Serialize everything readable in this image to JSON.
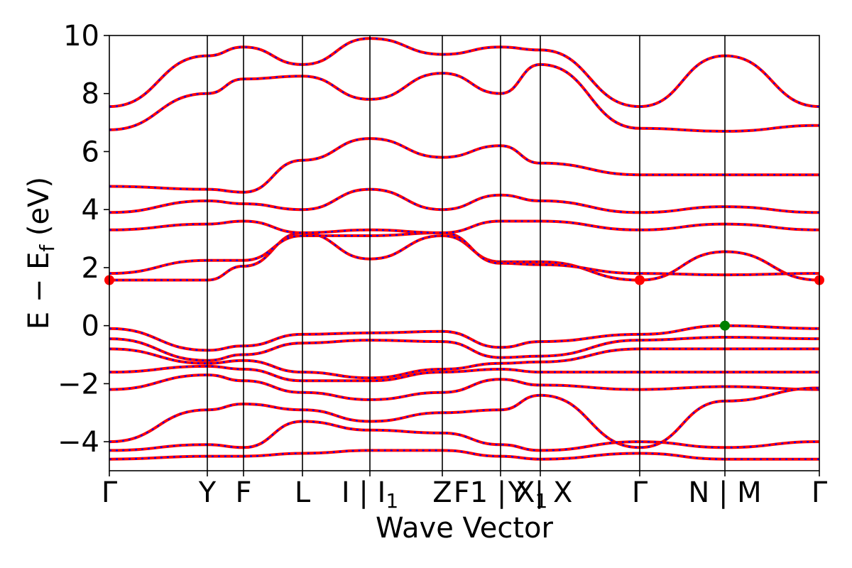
{
  "chart_data": {
    "type": "line",
    "title": "",
    "xlabel": "Wave Vector",
    "ylabel": "E − E_f (eV)",
    "ylabel_parts": {
      "prefix": "E − E",
      "subscript": "f",
      "suffix": " (eV)"
    },
    "ylim": [
      -5,
      10
    ],
    "grid": false,
    "legend": "none",
    "y_ticks": [
      -4,
      -2,
      0,
      2,
      4,
      6,
      8,
      10
    ],
    "y_tick_labels": [
      "−4",
      "−2",
      "0",
      "2",
      "4",
      "6",
      "8",
      "10"
    ],
    "x_range": [
      0,
      10
    ],
    "kpoints": [
      {
        "x": 0.0,
        "label": "Γ"
      },
      {
        "x": 1.38,
        "label": "Y"
      },
      {
        "x": 1.89,
        "label": "F"
      },
      {
        "x": 2.72,
        "label": "L"
      },
      {
        "x": 3.67,
        "label": "I | I1",
        "label_main": "I | I",
        "label_sub": "1"
      },
      {
        "x": 4.69,
        "label": "Z"
      },
      {
        "x": 5.51,
        "label": "F1 | X1",
        "label_main": "F1 | X",
        "label_sub": "1"
      },
      {
        "x": 6.07,
        "label": "Y | X"
      },
      {
        "x": 7.47,
        "label": "Γ"
      },
      {
        "x": 8.67,
        "label": "N | M"
      },
      {
        "x": 10.0,
        "label": "Γ"
      }
    ],
    "band_colors": {
      "primary": "#ff0000",
      "overlay": "#0000ff",
      "vertical_line": "#000000"
    },
    "markers": [
      {
        "name": "cbm",
        "x": 0.0,
        "y": 1.57,
        "color": "#ff0000"
      },
      {
        "name": "cbm",
        "x": 7.47,
        "y": 1.57,
        "color": "#ff0000"
      },
      {
        "name": "cbm",
        "x": 10.0,
        "y": 1.57,
        "color": "#ff0000"
      },
      {
        "name": "vbm",
        "x": 8.67,
        "y": 0.0,
        "color": "#008000"
      }
    ],
    "series": [
      {
        "x": [
          0,
          1.38,
          1.89,
          2.72,
          3.67,
          4.69,
          5.51,
          6.07,
          7.47,
          8.67,
          10.0
        ],
        "y": [
          1.57,
          1.57,
          2.05,
          3.2,
          2.3,
          3.1,
          2.2,
          2.2,
          1.57,
          2.55,
          1.57
        ]
      },
      {
        "x": [
          0,
          1.38,
          1.89,
          2.72,
          3.67,
          4.69,
          5.51,
          6.07,
          7.47,
          8.67,
          10.0
        ],
        "y": [
          1.8,
          2.25,
          2.25,
          3.1,
          3.1,
          3.2,
          2.15,
          2.1,
          1.8,
          1.75,
          1.8
        ]
      },
      {
        "x": [
          0,
          1.38,
          1.89,
          2.72,
          3.67,
          4.69,
          5.51,
          6.07,
          7.47,
          8.67,
          10.0
        ],
        "y": [
          3.3,
          3.5,
          3.6,
          3.2,
          3.3,
          3.2,
          3.6,
          3.6,
          3.3,
          3.5,
          3.3
        ]
      },
      {
        "x": [
          0,
          1.38,
          1.89,
          2.72,
          3.67,
          4.69,
          5.51,
          6.07,
          7.47,
          8.67,
          10.0
        ],
        "y": [
          3.9,
          4.3,
          4.2,
          4.0,
          4.7,
          4.0,
          4.5,
          4.3,
          3.9,
          4.1,
          3.9
        ]
      },
      {
        "x": [
          0,
          1.38,
          1.89,
          2.72,
          3.67,
          4.69,
          5.51,
          6.07,
          7.47,
          8.67,
          10.0
        ],
        "y": [
          4.8,
          4.7,
          4.6,
          5.7,
          6.45,
          5.8,
          6.2,
          5.6,
          5.2,
          5.2,
          5.2
        ]
      },
      {
        "x": [
          0,
          1.38,
          1.89,
          2.72,
          3.67,
          4.69,
          5.51,
          6.07,
          7.47,
          8.67,
          10.0
        ],
        "y": [
          6.75,
          8.0,
          8.5,
          8.6,
          7.8,
          8.7,
          8.0,
          9.0,
          6.8,
          6.7,
          6.9
        ]
      },
      {
        "x": [
          0,
          1.38,
          1.89,
          2.72,
          3.67,
          4.69,
          5.51,
          6.07,
          7.47,
          8.67,
          10.0
        ],
        "y": [
          7.55,
          9.3,
          9.6,
          9.0,
          9.9,
          9.35,
          9.6,
          9.5,
          7.55,
          9.3,
          7.55
        ]
      },
      {
        "x": [
          0,
          1.38,
          1.89,
          2.72,
          3.67,
          4.69,
          5.51,
          6.07,
          7.47,
          8.67,
          10.0
        ],
        "y": [
          -0.1,
          -0.85,
          -0.7,
          -0.3,
          -0.25,
          -0.2,
          -0.75,
          -0.55,
          -0.3,
          0.0,
          -0.1
        ]
      },
      {
        "x": [
          0,
          1.38,
          1.89,
          2.72,
          3.67,
          4.69,
          5.51,
          6.07,
          7.47,
          8.67,
          10.0
        ],
        "y": [
          -0.45,
          -1.2,
          -1.0,
          -0.6,
          -0.5,
          -0.55,
          -1.1,
          -1.05,
          -0.5,
          -0.4,
          -0.45
        ]
      },
      {
        "x": [
          0,
          1.38,
          1.89,
          2.72,
          3.67,
          4.69,
          5.51,
          6.07,
          7.47,
          8.67,
          10.0
        ],
        "y": [
          -0.8,
          -1.3,
          -1.2,
          -1.6,
          -1.8,
          -1.5,
          -1.3,
          -1.25,
          -0.8,
          -0.8,
          -0.8
        ]
      },
      {
        "x": [
          0,
          1.38,
          1.89,
          2.72,
          3.67,
          4.69,
          5.51,
          6.07,
          7.47,
          8.67,
          10.0
        ],
        "y": [
          -1.6,
          -1.4,
          -1.5,
          -1.9,
          -1.9,
          -1.6,
          -1.5,
          -1.6,
          -1.6,
          -1.6,
          -1.6
        ]
      },
      {
        "x": [
          0,
          1.38,
          1.89,
          2.72,
          3.67,
          4.69,
          5.51,
          6.07,
          7.47,
          8.67,
          10.0
        ],
        "y": [
          -2.2,
          -1.7,
          -1.9,
          -2.3,
          -2.55,
          -2.3,
          -1.85,
          -2.05,
          -2.2,
          -2.1,
          -2.2
        ]
      },
      {
        "x": [
          0,
          1.38,
          1.89,
          2.72,
          3.67,
          4.69,
          5.51,
          6.07,
          7.47,
          8.67,
          10.0
        ],
        "y": [
          -4.0,
          -2.9,
          -2.7,
          -2.9,
          -3.3,
          -3.0,
          -2.9,
          -2.4,
          -4.2,
          -2.6,
          -2.15
        ]
      },
      {
        "x": [
          0,
          1.38,
          1.89,
          2.72,
          3.67,
          4.69,
          5.51,
          6.07,
          7.47,
          8.67,
          10.0
        ],
        "y": [
          -4.3,
          -4.1,
          -4.2,
          -3.3,
          -3.6,
          -3.7,
          -4.1,
          -4.3,
          -4.0,
          -4.2,
          -4.0
        ]
      },
      {
        "x": [
          0,
          1.38,
          1.89,
          2.72,
          3.67,
          4.69,
          5.51,
          6.07,
          7.47,
          8.67,
          10.0
        ],
        "y": [
          -4.6,
          -4.5,
          -4.5,
          -4.4,
          -4.3,
          -4.3,
          -4.5,
          -4.6,
          -4.4,
          -4.6,
          -4.6
        ]
      }
    ]
  }
}
